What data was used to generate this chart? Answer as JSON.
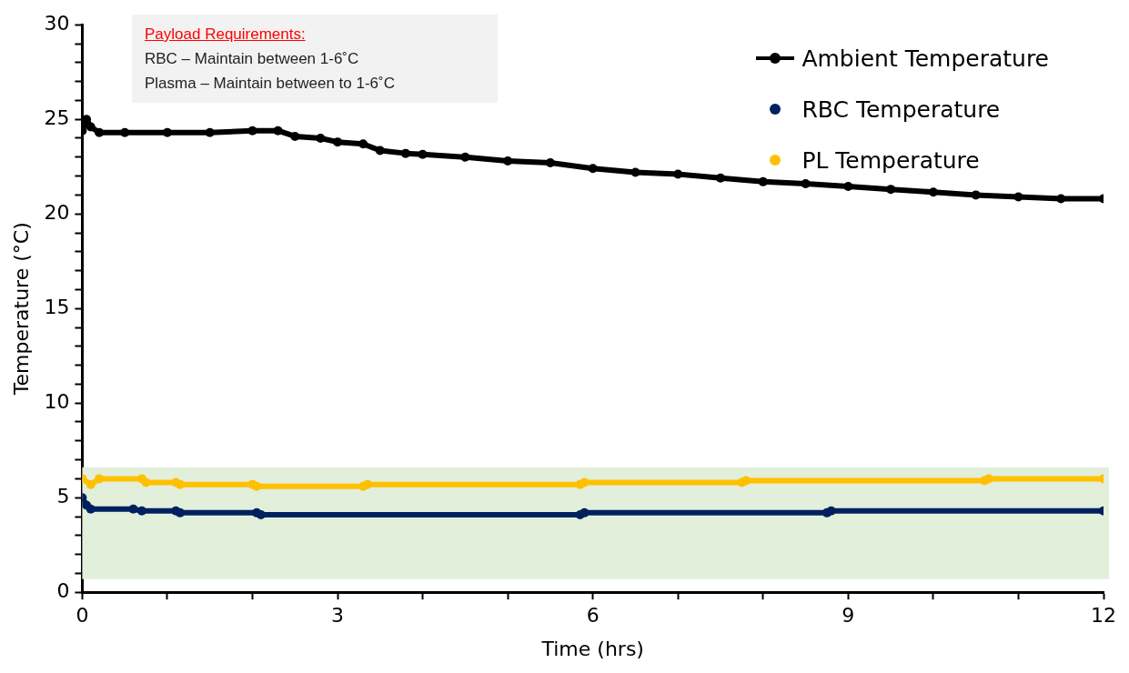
{
  "chart_data": {
    "type": "line",
    "xlabel": "Time (hrs)",
    "ylabel": "Temperature (°C)",
    "annotations": [
      "Payload Requirements:",
      "RBC – Maintain between 1-6˚C",
      "Plasma – Maintain between to 1-6˚C"
    ],
    "xlim": [
      0,
      12
    ],
    "ylim": [
      0,
      30
    ],
    "xticks": [
      0,
      {
        "value": 1,
        "label": null
      },
      {
        "value": 2,
        "label": null
      },
      3,
      {
        "value": 4,
        "label": null
      },
      {
        "value": 5,
        "label": null
      },
      6,
      {
        "value": 7,
        "label": null
      },
      {
        "value": 8,
        "label": null
      },
      9,
      {
        "value": 10,
        "label": null
      },
      {
        "value": 11,
        "label": null
      },
      12
    ],
    "yticks": [
      0,
      {
        "value": 1,
        "label": null
      },
      {
        "value": 2,
        "label": null
      },
      {
        "value": 3,
        "label": null
      },
      {
        "value": 4,
        "label": null
      },
      5,
      {
        "value": 6,
        "label": null
      },
      {
        "value": 7,
        "label": null
      },
      {
        "value": 8,
        "label": null
      },
      {
        "value": 9,
        "label": null
      },
      10,
      {
        "value": 11,
        "label": null
      },
      {
        "value": 12,
        "label": null
      },
      {
        "value": 13,
        "label": null
      },
      {
        "value": 14,
        "label": null
      },
      15,
      {
        "value": 16,
        "label": null
      },
      {
        "value": 17,
        "label": null
      },
      {
        "value": 18,
        "label": null
      },
      {
        "value": 19,
        "label": null
      },
      20,
      {
        "value": 21,
        "label": null
      },
      {
        "value": 22,
        "label": null
      },
      {
        "value": 23,
        "label": null
      },
      {
        "value": 24,
        "label": null
      },
      25,
      {
        "value": 26,
        "label": null
      },
      {
        "value": 27,
        "label": null
      },
      {
        "value": 28,
        "label": null
      },
      {
        "value": 29,
        "label": null
      },
      30
    ],
    "grid": false,
    "legend": "top right",
    "marker": "circle",
    "line_style": "solid",
    "bands": [
      {
        "axis": "y",
        "from": 0.7,
        "to": 6.6,
        "color": "#e2efda"
      }
    ],
    "series": [
      {
        "name": "Ambient Temperature",
        "color": "#000000",
        "x": [
          0,
          0.05,
          0.1,
          0.2,
          0.5,
          1,
          1.5,
          2,
          2.3,
          2.5,
          2.8,
          3,
          3.3,
          3.5,
          3.8,
          4,
          4.5,
          5,
          5.5,
          6,
          6.5,
          7,
          7.5,
          8,
          8.5,
          9,
          9.5,
          10,
          10.5,
          11,
          11.5,
          12
        ],
        "values": [
          24.4,
          25.0,
          24.6,
          24.3,
          24.3,
          24.3,
          24.3,
          24.4,
          24.4,
          24.1,
          24.0,
          23.8,
          23.7,
          23.35,
          23.2,
          23.15,
          23.0,
          22.8,
          22.7,
          22.4,
          22.2,
          22.1,
          21.9,
          21.7,
          21.6,
          21.45,
          21.3,
          21.15,
          21.0,
          20.9,
          20.8,
          20.8
        ]
      },
      {
        "name": "RBC Temperature",
        "color": "#002060",
        "x": [
          0,
          0.05,
          0.1,
          0.6,
          0.7,
          1.1,
          1.15,
          2.05,
          2.1,
          5.85,
          5.9,
          8.75,
          8.8,
          12
        ],
        "values": [
          5.0,
          4.6,
          4.4,
          4.4,
          4.3,
          4.3,
          4.2,
          4.2,
          4.1,
          4.1,
          4.2,
          4.2,
          4.3,
          4.3
        ]
      },
      {
        "name": "PL Temperature",
        "color": "#ffc000",
        "x": [
          0,
          0.1,
          0.2,
          0.7,
          0.75,
          1.1,
          1.15,
          2.0,
          2.05,
          3.3,
          3.35,
          5.85,
          5.9,
          7.75,
          7.8,
          10.6,
          10.65,
          12
        ],
        "values": [
          6.0,
          5.7,
          6.0,
          6.0,
          5.8,
          5.8,
          5.7,
          5.7,
          5.6,
          5.6,
          5.7,
          5.7,
          5.8,
          5.8,
          5.9,
          5.9,
          6.0,
          6.0
        ]
      }
    ]
  }
}
